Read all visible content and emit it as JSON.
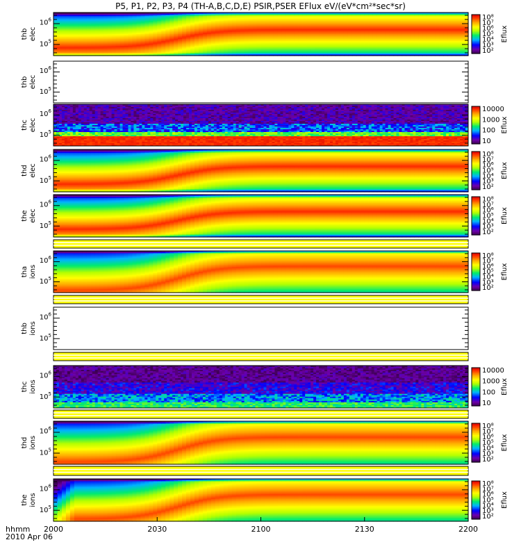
{
  "chart_data": {
    "type": "heatmap",
    "title": "P5, P1, P2, P3, P4 (TH-A,B,C,D,E) PSIR,PSER EFlux eV/(eV*cm²*sec*sr)",
    "x_label_lines": [
      "hhmm",
      "2010 Apr 06"
    ],
    "x_ticks": [
      "2000",
      "2030",
      "2100",
      "2130",
      "2200"
    ],
    "x_range": [
      "20:00",
      "22:00"
    ],
    "y_scale": "log",
    "colorbar_label": "Eflux",
    "panels": [
      {
        "probe": "thb",
        "species": "elec",
        "mode": "smooth",
        "y_ticks": [
          {
            "base": "10",
            "exp": "6"
          },
          {
            "base": "10",
            "exp": "5"
          }
        ],
        "colorbar": {
          "scale": "log",
          "ticks": [
            "10⁸",
            "10⁷",
            "10⁶",
            "10⁵",
            "10⁴",
            "10³",
            "10²"
          ]
        }
      },
      {
        "probe": "thb",
        "species": "elec",
        "mode": "empty",
        "y_ticks": [
          {
            "base": "10",
            "exp": "6"
          },
          {
            "base": "10",
            "exp": "5"
          }
        ]
      },
      {
        "probe": "thc",
        "species": "elec",
        "mode": "noise_elec",
        "y_ticks": [
          {
            "base": "10",
            "exp": "6"
          },
          {
            "base": "10",
            "exp": "5"
          }
        ],
        "colorbar": {
          "scale": "linear_log",
          "ticks": [
            "10000",
            "1000",
            "100",
            "10"
          ]
        }
      },
      {
        "probe": "thd",
        "species": "elec",
        "mode": "smooth",
        "y_ticks": [
          {
            "base": "10",
            "exp": "6"
          },
          {
            "base": "10",
            "exp": "5"
          }
        ],
        "colorbar": {
          "scale": "log",
          "ticks": [
            "10⁸",
            "10⁷",
            "10⁶",
            "10⁵",
            "10⁴",
            "10³",
            "10²"
          ]
        }
      },
      {
        "probe": "the",
        "species": "elec",
        "mode": "smooth",
        "y_ticks": [
          {
            "base": "10",
            "exp": "6"
          },
          {
            "base": "10",
            "exp": "5"
          }
        ],
        "colorbar": {
          "scale": "log",
          "ticks": [
            "10⁸",
            "10⁷",
            "10⁶",
            "10⁵",
            "10⁴",
            "10³",
            "10²"
          ]
        }
      },
      {
        "probe": "tha",
        "species": "ions",
        "mode": "smooth_ions",
        "y_ticks": [
          {
            "base": "10",
            "exp": "6"
          },
          {
            "base": "10",
            "exp": "5"
          }
        ],
        "colorbar": {
          "scale": "log",
          "ticks": [
            "10⁸",
            "10⁷",
            "10⁶",
            "10⁵",
            "10⁴",
            "10³",
            "10²"
          ]
        }
      },
      {
        "probe": "thb",
        "species": "ions",
        "mode": "empty",
        "y_ticks": [
          {
            "base": "10",
            "exp": "6"
          },
          {
            "base": "10",
            "exp": "5"
          }
        ]
      },
      {
        "probe": "thc",
        "species": "ions",
        "mode": "noise_ions",
        "y_ticks": [
          {
            "base": "10",
            "exp": "6"
          },
          {
            "base": "10",
            "exp": "5"
          }
        ],
        "colorbar": {
          "scale": "linear_log",
          "ticks": [
            "10000",
            "1000",
            "100",
            "10"
          ]
        }
      },
      {
        "probe": "thd",
        "species": "ions",
        "mode": "smooth_ions",
        "y_ticks": [
          {
            "base": "10",
            "exp": "6"
          },
          {
            "base": "10",
            "exp": "5"
          }
        ],
        "colorbar": {
          "scale": "log",
          "ticks": [
            "10⁸",
            "10⁷",
            "10⁶",
            "10⁵",
            "10⁴",
            "10³",
            "10²"
          ]
        }
      },
      {
        "probe": "the",
        "species": "ions",
        "mode": "smooth_ions_green",
        "y_ticks": [
          {
            "base": "10",
            "exp": "6"
          },
          {
            "base": "10",
            "exp": "5"
          }
        ],
        "colorbar": {
          "scale": "log",
          "ticks": [
            "10⁸",
            "10⁷",
            "10⁶",
            "10⁵",
            "10⁴",
            "10³",
            "10²"
          ]
        }
      }
    ]
  }
}
